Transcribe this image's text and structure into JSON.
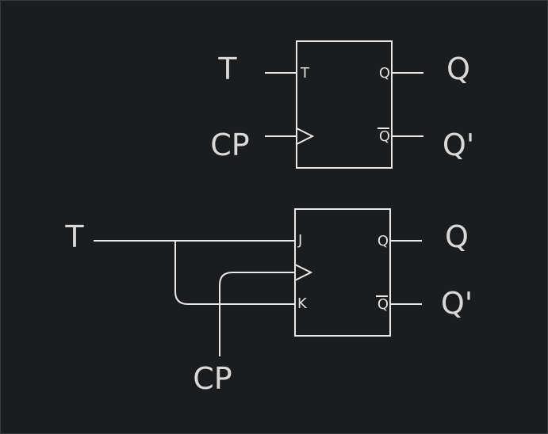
{
  "colors": {
    "background": "#1b1c1e",
    "line": "#e8e8e8",
    "text": "#d8d8d8"
  },
  "t_flipflop": {
    "inputs": {
      "t": "T",
      "cp": "CP"
    },
    "pins": {
      "t": "T",
      "q": "Q",
      "qbar": "Q"
    },
    "outputs": {
      "q": "Q",
      "qprime": "Q'"
    }
  },
  "jk_flipflop": {
    "inputs": {
      "t": "T",
      "cp": "CP"
    },
    "pins": {
      "j": "J",
      "k": "K",
      "q": "Q",
      "qbar": "Q"
    },
    "outputs": {
      "q": "Q",
      "qprime": "Q'"
    }
  }
}
